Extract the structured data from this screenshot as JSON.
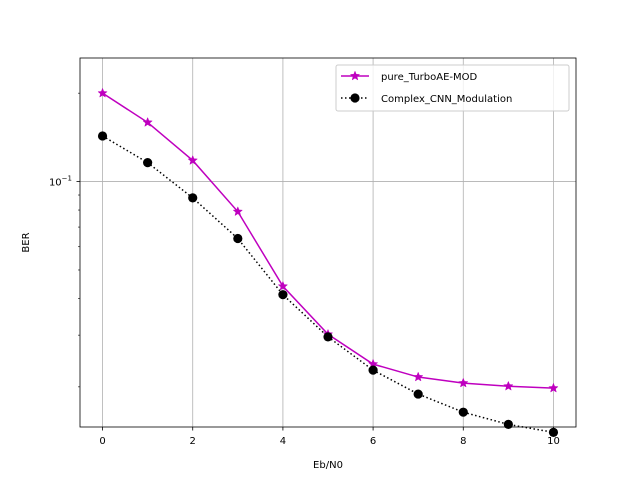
{
  "chart_data": {
    "type": "line",
    "title": "",
    "xlabel": "Eb/N0",
    "ylabel": "BER",
    "xscale": "linear",
    "yscale": "log",
    "xlim": [
      -0.5,
      10.5
    ],
    "ylim": [
      0.0146,
      0.2635
    ],
    "grid": true,
    "legend_position": "top-right",
    "x_ticks": [
      0,
      2,
      4,
      6,
      8,
      10
    ],
    "x_tick_labels": [
      "0",
      "2",
      "4",
      "6",
      "8",
      "10"
    ],
    "y_ticks": [
      0.1
    ],
    "y_tick_base": "10",
    "y_tick_exponent": "−1",
    "x": [
      0,
      1,
      2,
      3,
      4,
      5,
      6,
      7,
      8,
      9,
      10
    ],
    "series": [
      {
        "name": "pure_TurboAE-MOD",
        "color": "#bf00bf",
        "linestyle": "solid",
        "marker": "star",
        "values": [
          0.2,
          0.159,
          0.118,
          0.079,
          0.044,
          0.0302,
          0.0239,
          0.0216,
          0.0206,
          0.0201,
          0.0198
        ]
      },
      {
        "name": "Complex_CNN_Modulation",
        "color": "#000000",
        "linestyle": "dotted",
        "marker": "circle",
        "values": [
          0.143,
          0.116,
          0.088,
          0.064,
          0.0412,
          0.0296,
          0.0228,
          0.0189,
          0.0164,
          0.0149,
          0.014
        ]
      }
    ]
  }
}
